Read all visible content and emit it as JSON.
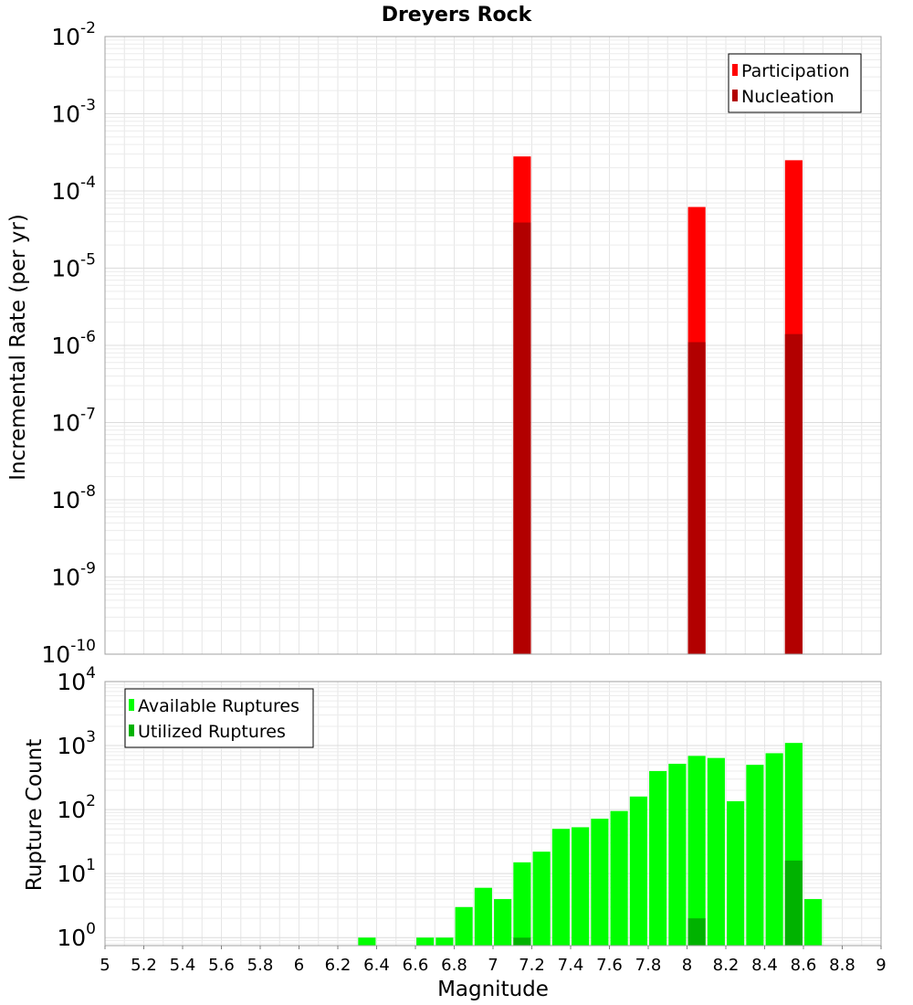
{
  "chart_data": [
    {
      "type": "bar",
      "title": "Dreyers Rock",
      "ylabel": "Incremental Rate (per yr)",
      "xlabel": "",
      "xlim": [
        5,
        9
      ],
      "ylim": [
        1e-10,
        0.01
      ],
      "yscale": "log",
      "grid": true,
      "legend_position": "top-right",
      "bar_width": 0.09,
      "y_tick_exponents": [
        -10,
        -9,
        -8,
        -7,
        -6,
        -5,
        -4,
        -3,
        -2
      ],
      "series": [
        {
          "name": "Participation",
          "color": "#ff0000",
          "x": [
            7.15,
            8.05,
            8.55
          ],
          "values": [
            0.00028,
            6.2e-05,
            0.00025
          ]
        },
        {
          "name": "Nucleation",
          "color": "#b20000",
          "x": [
            7.15,
            8.05,
            8.55
          ],
          "values": [
            3.9e-05,
            1.1e-06,
            1.4e-06
          ]
        }
      ]
    },
    {
      "type": "bar",
      "title": "",
      "ylabel": "Rupture Count",
      "xlabel": "Magnitude",
      "xlim": [
        5,
        9
      ],
      "ylim": [
        0.75,
        10000
      ],
      "yscale": "log",
      "grid": true,
      "legend_position": "top-left",
      "bar_width": 0.09,
      "y_tick_exponents": [
        0,
        1,
        2,
        3,
        4
      ],
      "x_ticks": [
        "5",
        "5.2",
        "5.4",
        "5.6",
        "5.8",
        "6",
        "6.2",
        "6.4",
        "6.6",
        "6.8",
        "7",
        "7.2",
        "7.4",
        "7.6",
        "7.8",
        "8",
        "8.2",
        "8.4",
        "8.6",
        "8.8",
        "9"
      ],
      "series": [
        {
          "name": "Available Ruptures",
          "color": "#00ff00",
          "x": [
            6.35,
            6.65,
            6.75,
            6.85,
            6.95,
            7.05,
            7.15,
            7.25,
            7.35,
            7.45,
            7.55,
            7.65,
            7.75,
            7.85,
            7.95,
            8.05,
            8.15,
            8.25,
            8.35,
            8.45,
            8.55,
            8.65
          ],
          "values": [
            1,
            1,
            1,
            3,
            6,
            4,
            15,
            22,
            50,
            53,
            72,
            95,
            160,
            400,
            520,
            690,
            640,
            135,
            500,
            760,
            1100,
            4
          ]
        },
        {
          "name": "Utilized Ruptures",
          "color": "#00b200",
          "x": [
            7.15,
            8.05,
            8.55
          ],
          "values": [
            1,
            2,
            16
          ]
        }
      ]
    }
  ]
}
